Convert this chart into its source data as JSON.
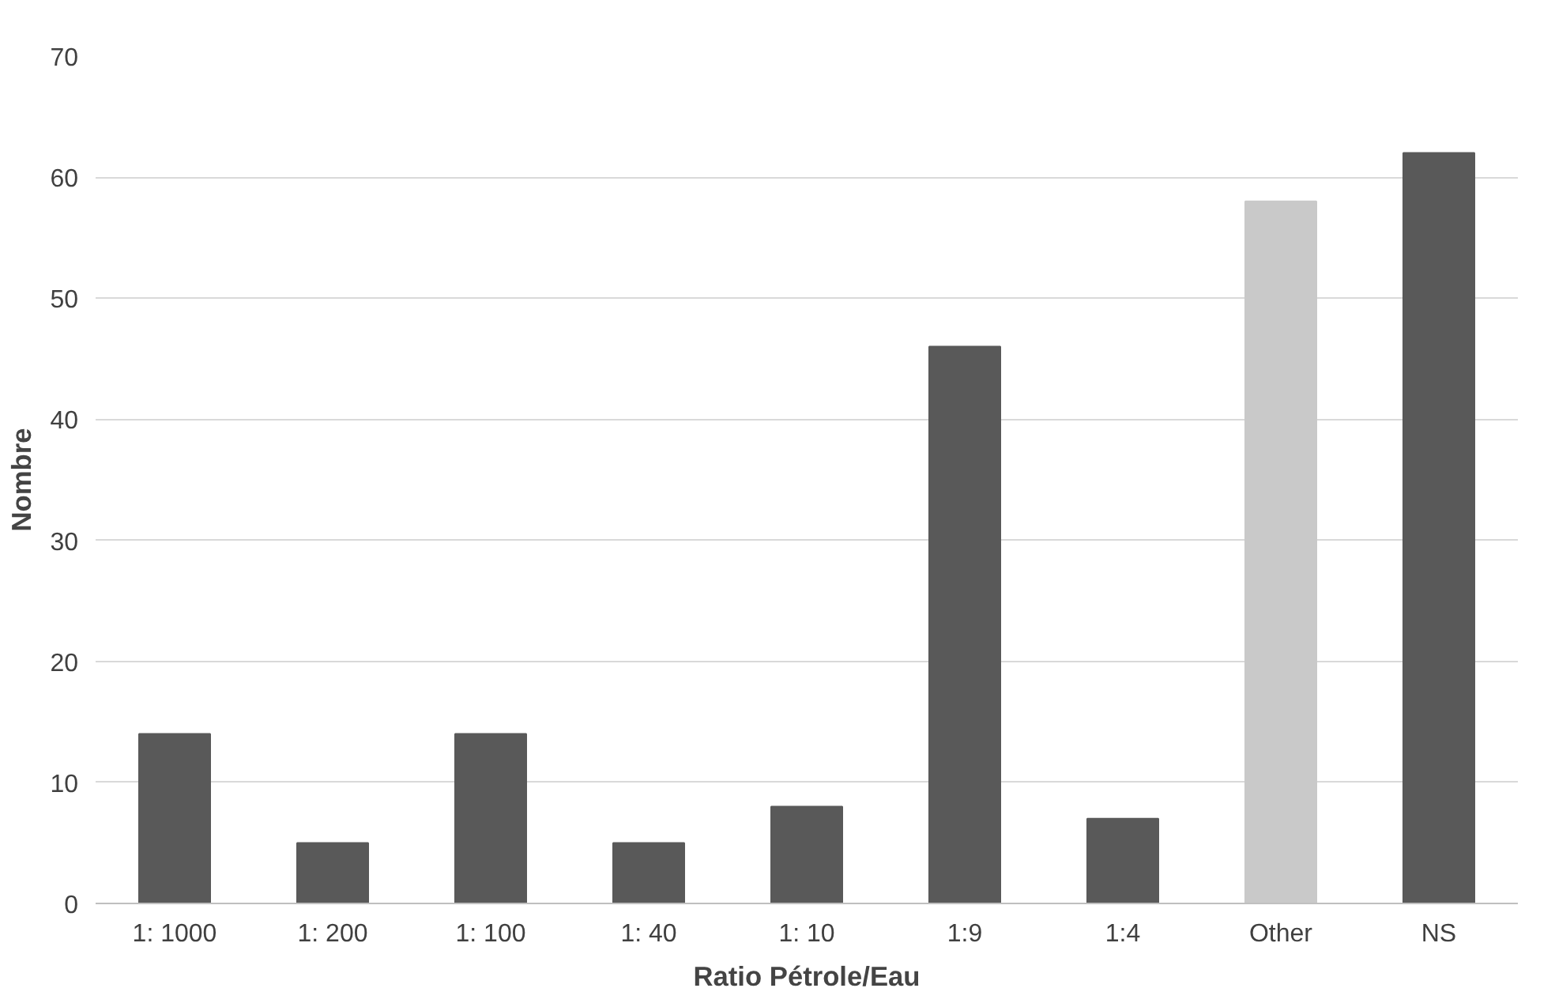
{
  "chart_data": {
    "type": "bar",
    "xlabel": "Ratio Pétrole/Eau",
    "ylabel": "Nombre",
    "categories": [
      "1: 1000",
      "1: 200",
      "1: 100",
      "1: 40",
      "1: 10",
      "1:9",
      "1:4",
      "Other",
      "NS"
    ],
    "values": [
      14,
      5,
      14,
      5,
      8,
      46,
      7,
      58,
      62
    ],
    "colors": [
      "#595959",
      "#595959",
      "#595959",
      "#595959",
      "#595959",
      "#595959",
      "#595959",
      "#c9c9c9",
      "#595959"
    ],
    "ylim": [
      0,
      70
    ],
    "yticks": [
      0,
      10,
      20,
      30,
      40,
      50,
      60,
      70
    ],
    "grid": "y"
  }
}
